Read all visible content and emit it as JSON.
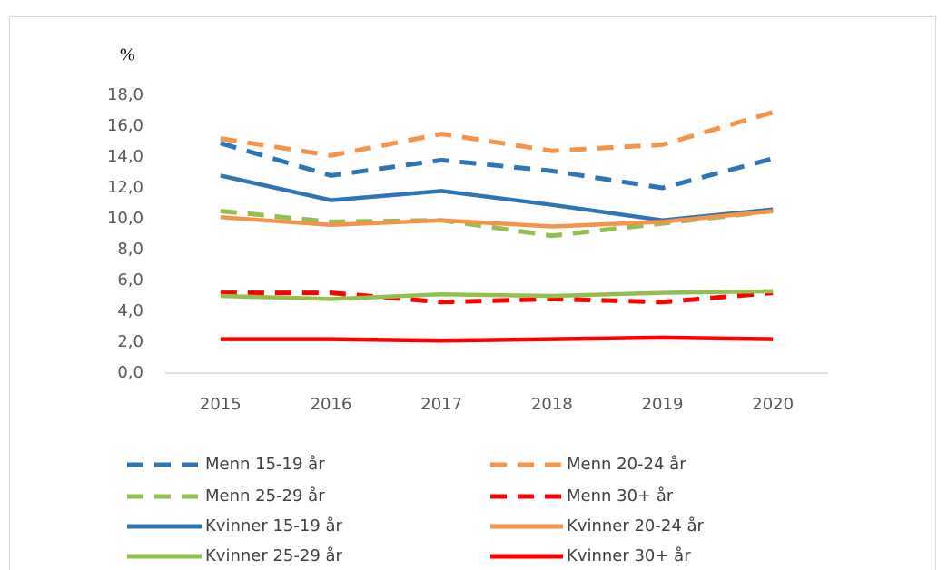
{
  "chart_data": {
    "type": "line",
    "y_label": "%",
    "categories": [
      "2015",
      "2016",
      "2017",
      "2018",
      "2019",
      "2020"
    ],
    "ylim": [
      0,
      18
    ],
    "yticks": [
      {
        "value": 0,
        "label": "0,0"
      },
      {
        "value": 2,
        "label": "2,0"
      },
      {
        "value": 4,
        "label": "4,0"
      },
      {
        "value": 6,
        "label": "6,0"
      },
      {
        "value": 8,
        "label": "8,0"
      },
      {
        "value": 10,
        "label": "10,0"
      },
      {
        "value": 12,
        "label": "12,0"
      },
      {
        "value": 14,
        "label": "14,0"
      },
      {
        "value": 16,
        "label": "16,0"
      },
      {
        "value": 18,
        "label": "18,0"
      }
    ],
    "grid": false,
    "legend": "bottom",
    "series": [
      {
        "name": "Menn 15-19 år",
        "color": "#2e75b6",
        "dashed": true,
        "values": [
          14.9,
          12.8,
          13.8,
          13.1,
          12.0,
          13.9
        ]
      },
      {
        "name": "Menn 20-24 år",
        "color": "#f4944a",
        "dashed": true,
        "values": [
          15.2,
          14.1,
          15.5,
          14.4,
          14.8,
          16.9
        ]
      },
      {
        "name": "Menn 25-29 år",
        "color": "#92c050",
        "dashed": true,
        "values": [
          10.5,
          9.8,
          9.9,
          8.9,
          9.7,
          10.5
        ]
      },
      {
        "name": "Menn 30+ år",
        "color": "#ff0000",
        "dashed": true,
        "values": [
          5.2,
          5.2,
          4.6,
          4.8,
          4.6,
          5.2
        ]
      },
      {
        "name": "Kvinner 15-19 år",
        "color": "#2e75b6",
        "dashed": false,
        "values": [
          12.8,
          11.2,
          11.8,
          10.9,
          9.9,
          10.6
        ]
      },
      {
        "name": "Kvinner 20-24 år",
        "color": "#f4944a",
        "dashed": false,
        "values": [
          10.1,
          9.6,
          9.9,
          9.5,
          9.8,
          10.5
        ]
      },
      {
        "name": "Kvinner 25-29 år",
        "color": "#92c050",
        "dashed": false,
        "values": [
          5.0,
          4.8,
          5.1,
          5.0,
          5.2,
          5.3
        ]
      },
      {
        "name": "Kvinner 30+ år",
        "color": "#ff0000",
        "dashed": false,
        "values": [
          2.2,
          2.2,
          2.1,
          2.2,
          2.3,
          2.2
        ]
      }
    ]
  }
}
